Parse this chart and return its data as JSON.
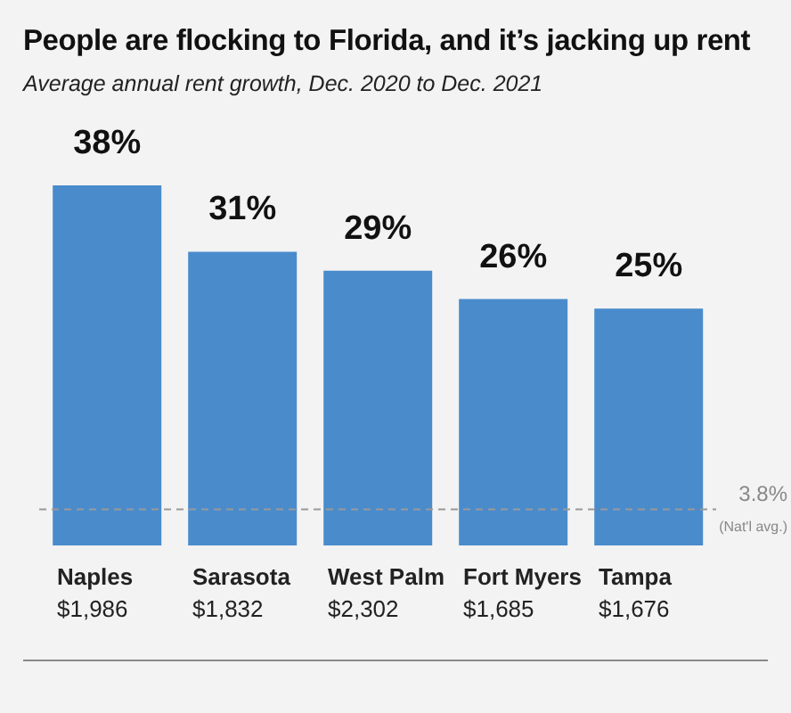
{
  "chart_data": {
    "type": "bar",
    "title": "People are flocking to Florida, and it’s jacking up rent",
    "subtitle": "Average annual rent growth, Dec. 2020 to Dec. 2021",
    "categories": [
      "Naples\n$1,986",
      "Sarasota\n$1,832",
      "West Palm\n$2,302",
      "Fort Myers\n$1,685",
      "Tampa\n$1,676"
    ],
    "values": [
      38,
      31,
      29,
      26,
      25
    ],
    "value_labels": [
      "38%",
      "31%",
      "29%",
      "26%",
      "25%"
    ],
    "color": "#4a8bcc",
    "ref_lines": [
      {
        "axis": "y",
        "value": 3.8,
        "label": "3.8%",
        "color": "#999999",
        "line_style": "dashed"
      }
    ],
    "annotations": [
      "(Nat'l avg.)"
    ],
    "grid": false,
    "legend": false
  }
}
